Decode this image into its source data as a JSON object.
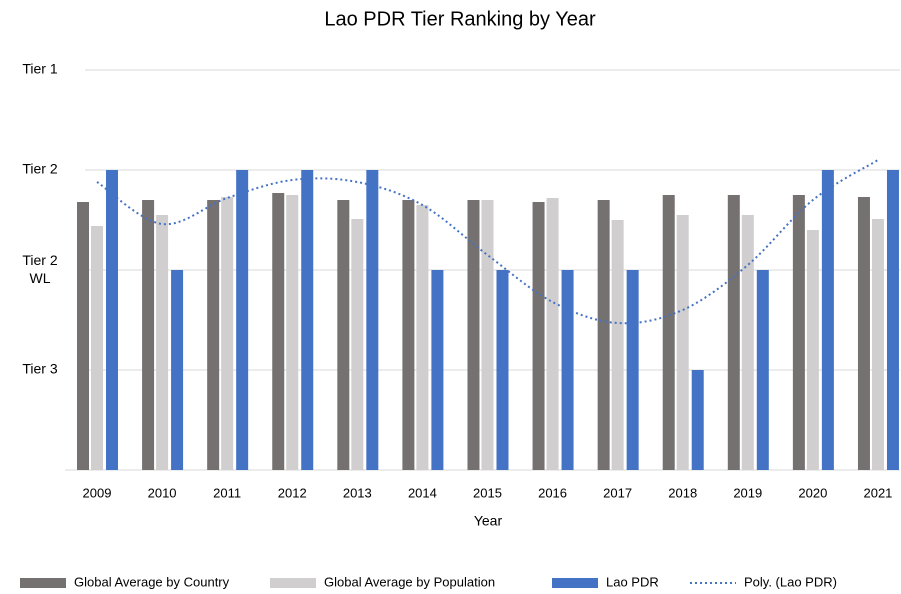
{
  "chart_data": {
    "type": "bar",
    "title": "Lao PDR Tier Ranking by Year",
    "x_label": "Year",
    "categories": [
      "2009",
      "2010",
      "2011",
      "2012",
      "2013",
      "2014",
      "2015",
      "2016",
      "2017",
      "2018",
      "2019",
      "2020",
      "2021"
    ],
    "series": [
      {
        "name": "Global Average by Country",
        "color": "#767171",
        "values": [
          2.68,
          2.7,
          2.7,
          2.77,
          2.7,
          2.7,
          2.7,
          2.68,
          2.7,
          2.75,
          2.75,
          2.75,
          2.73
        ]
      },
      {
        "name": "Global Average by Population",
        "color": "#d0cece",
        "values": [
          2.44,
          2.55,
          2.73,
          2.75,
          2.51,
          2.65,
          2.7,
          2.72,
          2.5,
          2.55,
          2.55,
          2.4,
          2.51
        ]
      },
      {
        "name": "Lao PDR",
        "color": "#4472c4",
        "values": [
          3,
          2,
          3,
          3,
          3,
          2,
          2,
          2,
          2,
          1,
          2,
          3,
          3
        ]
      },
      {
        "name": "Poly. (Lao PDR)",
        "color": "#4472c4",
        "type": "line",
        "values": [
          2.88,
          2.46,
          2.72,
          2.9,
          2.88,
          2.65,
          2.15,
          1.68,
          1.47,
          1.6,
          2.05,
          2.7,
          3.1
        ]
      }
    ],
    "ylim": [
      0,
      4
    ],
    "yticks": [
      {
        "value": 1,
        "label": "Tier 3"
      },
      {
        "value": 2,
        "label": "Tier 2 WL"
      },
      {
        "value": 3,
        "label": "Tier 2"
      },
      {
        "value": 4,
        "label": "Tier 1"
      }
    ],
    "grid": true,
    "legend": "bottom"
  }
}
